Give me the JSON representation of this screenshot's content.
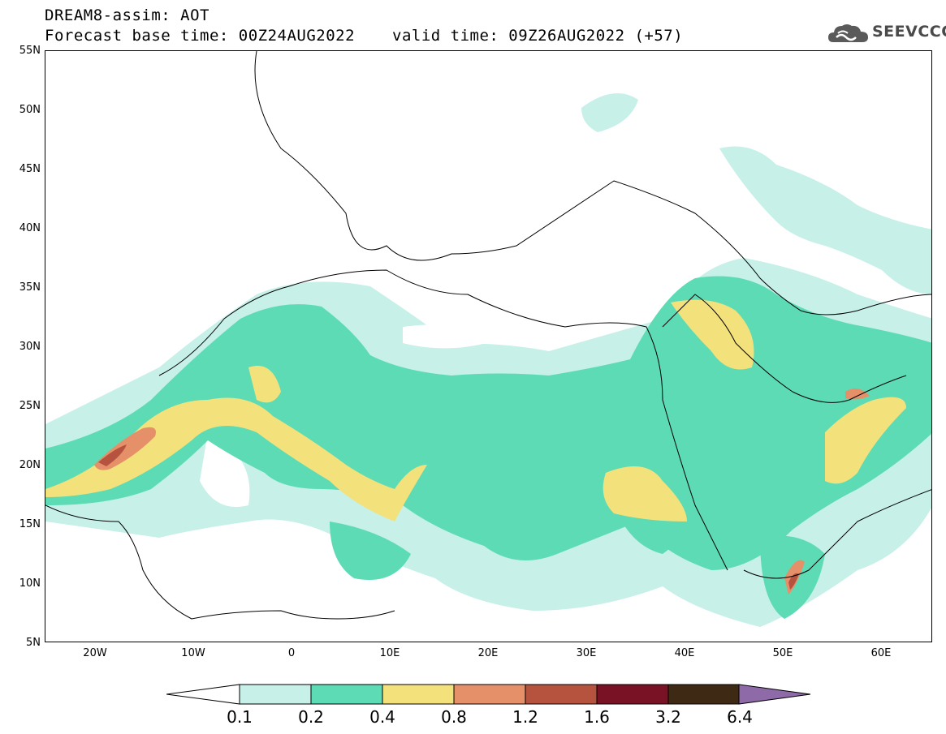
{
  "header": {
    "line1": "DREAM8-assim: AOT",
    "line2": "Forecast base time: 00Z24AUG2022",
    "valid": "valid time: 09Z26AUG2022 (+57)"
  },
  "logo": {
    "text": "SEEVCCC",
    "icon": "cloud-icon"
  },
  "map": {
    "lat_labels": [
      "55N",
      "50N",
      "45N",
      "40N",
      "35N",
      "30N",
      "25N",
      "20N",
      "15N",
      "10N",
      "5N"
    ],
    "lon_labels": [
      "20W",
      "10W",
      "0",
      "10E",
      "20E",
      "30E",
      "40E",
      "50E",
      "60E"
    ],
    "extent": {
      "lon_min": -25,
      "lon_max": 65,
      "lat_min": 5,
      "lat_max": 55
    }
  },
  "colorbar": {
    "labels": [
      "0.1",
      "0.2",
      "0.4",
      "0.8",
      "1.2",
      "1.6",
      "3.2",
      "6.4"
    ],
    "colors": [
      "#c6f0e8",
      "#5ddbb5",
      "#f3e27c",
      "#e6906a",
      "#b5533f",
      "#7a1226",
      "#3e2a14",
      "#8e6aa8"
    ]
  }
}
